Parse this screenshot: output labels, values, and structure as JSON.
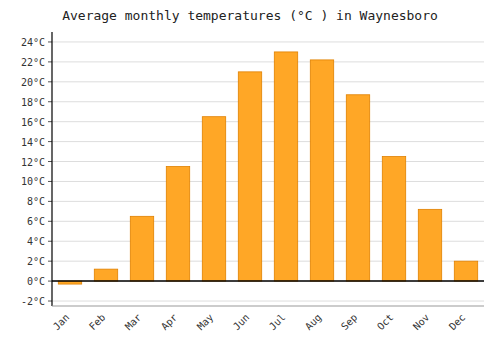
{
  "chart_data": {
    "type": "bar",
    "title": "Average monthly temperatures (°C ) in Waynesboro",
    "categories": [
      "Jan",
      "Feb",
      "Mar",
      "Apr",
      "May",
      "Jun",
      "Jul",
      "Aug",
      "Sep",
      "Oct",
      "Nov",
      "Dec"
    ],
    "values": [
      -0.3,
      1.2,
      6.5,
      11.5,
      16.5,
      21.0,
      23.0,
      22.2,
      18.7,
      12.5,
      7.2,
      2.0
    ],
    "color": "#FFA726",
    "ylim": [
      -2.5,
      25
    ],
    "yticks": [
      {
        "value": -2,
        "label": "-2°C"
      },
      {
        "value": 0,
        "label": "0°C"
      },
      {
        "value": 2,
        "label": "2°C"
      },
      {
        "value": 4,
        "label": "4°C"
      },
      {
        "value": 6,
        "label": "6°C"
      },
      {
        "value": 8,
        "label": "8°C"
      },
      {
        "value": 10,
        "label": "10°C"
      },
      {
        "value": 12,
        "label": "12°C"
      },
      {
        "value": 14,
        "label": "14°C"
      },
      {
        "value": 16,
        "label": "16°C"
      },
      {
        "value": 18,
        "label": "18°C"
      },
      {
        "value": 20,
        "label": "20°C"
      },
      {
        "value": 22,
        "label": "22°C"
      },
      {
        "value": 24,
        "label": "24°C"
      }
    ],
    "grid": true
  }
}
